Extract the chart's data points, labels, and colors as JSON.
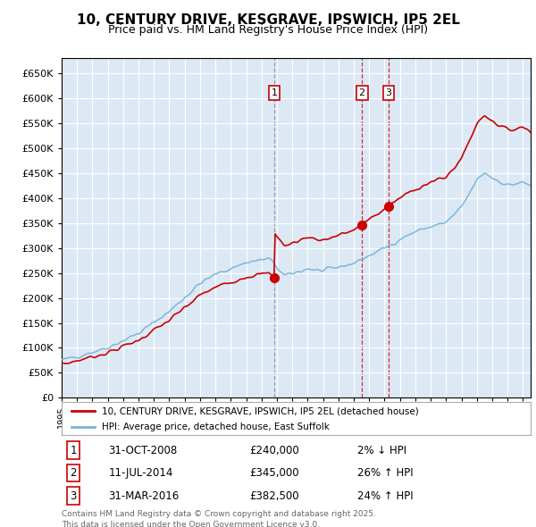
{
  "title": "10, CENTURY DRIVE, KESGRAVE, IPSWICH, IP5 2EL",
  "subtitle": "Price paid vs. HM Land Registry's House Price Index (HPI)",
  "ytick_values": [
    0,
    50000,
    100000,
    150000,
    200000,
    250000,
    300000,
    350000,
    400000,
    450000,
    500000,
    550000,
    600000,
    650000
  ],
  "plot_bg_color": "#dce9f5",
  "grid_color": "#ffffff",
  "hpi_color": "#7ab4d8",
  "price_color": "#cc0000",
  "purchases": [
    {
      "num": 1,
      "date": "31-OCT-2008",
      "price": 240000,
      "hpi_rel": "2% ↓ HPI",
      "x": 2008.83
    },
    {
      "num": 2,
      "date": "11-JUL-2014",
      "price": 345000,
      "hpi_rel": "26% ↑ HPI",
      "x": 2014.53
    },
    {
      "num": 3,
      "date": "31-MAR-2016",
      "price": 382500,
      "hpi_rel": "24% ↑ HPI",
      "x": 2016.25
    }
  ],
  "legend_line1": "10, CENTURY DRIVE, KESGRAVE, IPSWICH, IP5 2EL (detached house)",
  "legend_line2": "HPI: Average price, detached house, East Suffolk",
  "footnote": "Contains HM Land Registry data © Crown copyright and database right 2025.\nThis data is licensed under the Open Government Licence v3.0.",
  "xlim": [
    1995,
    2025.5
  ],
  "ylim": [
    0,
    680000
  ],
  "vline1_color": "#888888",
  "vline23_color": "#cc0000"
}
